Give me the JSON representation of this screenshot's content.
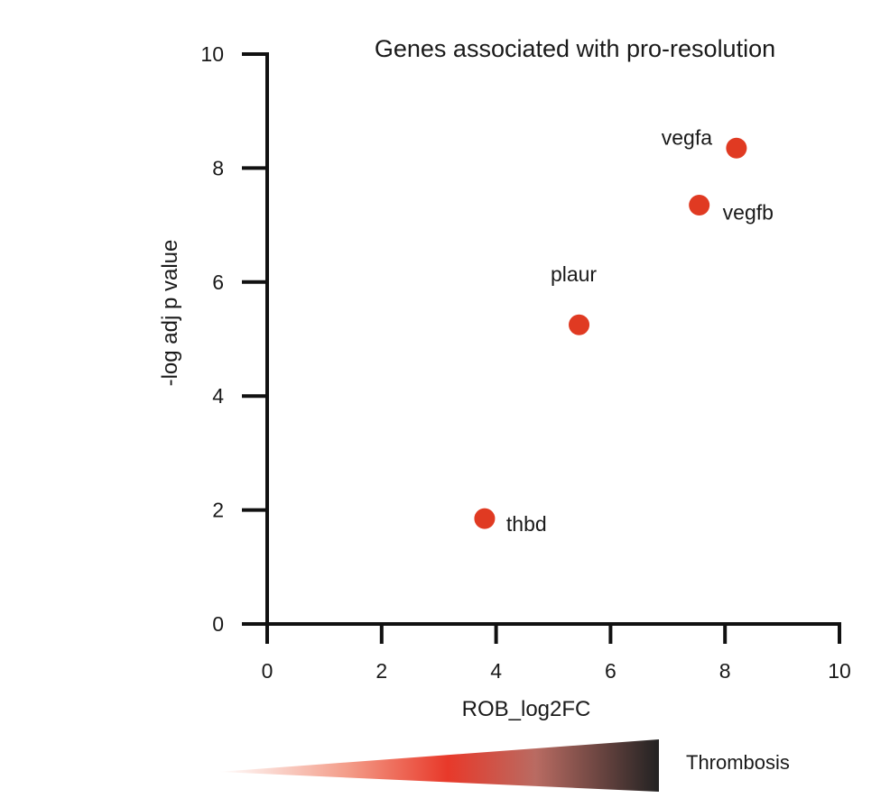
{
  "chart_data": {
    "type": "scatter",
    "title": "Genes associated with pro-resolution",
    "xlabel": "ROB_log2FC",
    "ylabel": "-log adj p value",
    "xlim": [
      0,
      10
    ],
    "ylim": [
      0,
      10
    ],
    "xticks": [
      0,
      2,
      4,
      6,
      8,
      10
    ],
    "yticks": [
      0,
      2,
      4,
      6,
      8,
      10
    ],
    "grid": false,
    "points": [
      {
        "label": "vegfa",
        "x": 8.2,
        "y": 8.35
      },
      {
        "label": "vegfb",
        "x": 7.55,
        "y": 7.35
      },
      {
        "label": "plaur",
        "x": 5.45,
        "y": 5.25
      },
      {
        "label": "thbd",
        "x": 3.8,
        "y": 1.85
      }
    ],
    "point_color": "#e03a22",
    "gradient_legend": {
      "label": "Thrombosis",
      "colors": [
        "#ffffff",
        "#f06a50",
        "#e83a2a",
        "#222222"
      ]
    }
  }
}
